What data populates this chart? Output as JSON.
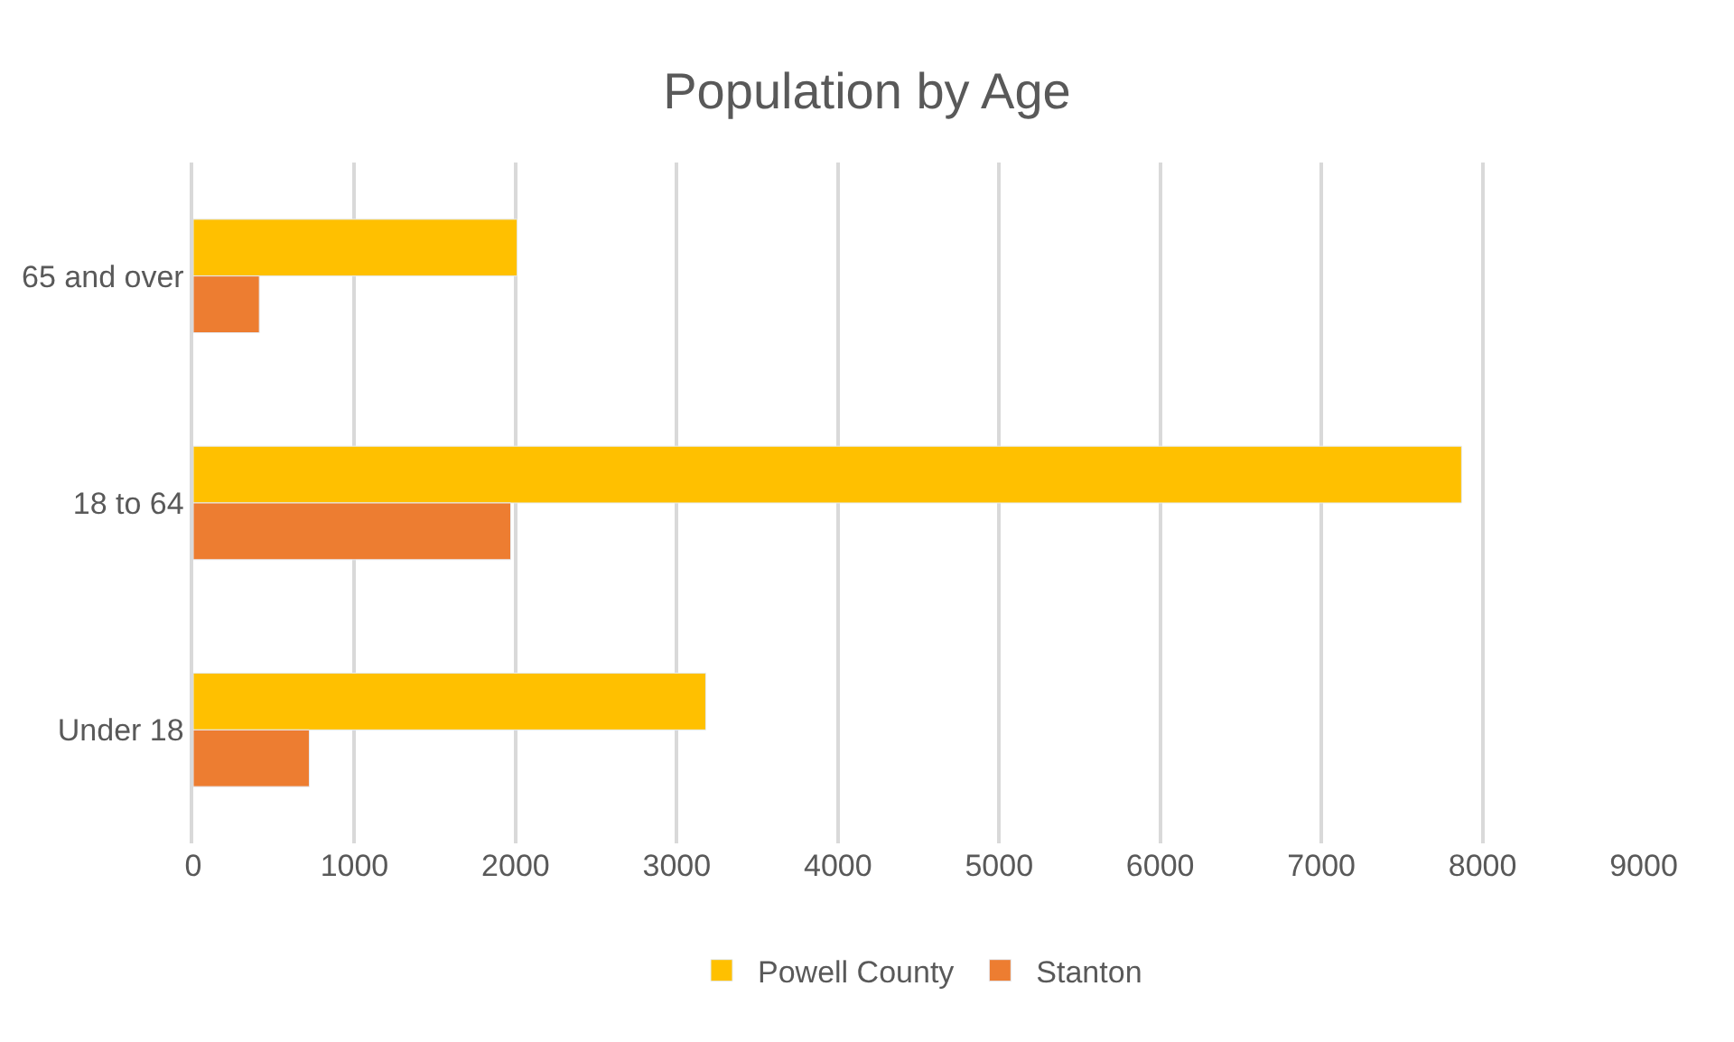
{
  "chart_data": {
    "type": "bar",
    "orientation": "horizontal",
    "title": "Population by Age",
    "categories": [
      "65 and over",
      "18 to 64",
      "Under 18"
    ],
    "series": [
      {
        "name": "Powell County",
        "color": "#ffc000",
        "values": [
          2010,
          7870,
          3180
        ]
      },
      {
        "name": "Stanton",
        "color": "#ed7d31",
        "values": [
          410,
          1970,
          720
        ]
      }
    ],
    "xlim": [
      0,
      9000
    ],
    "xticks": [
      0,
      1000,
      2000,
      3000,
      4000,
      5000,
      6000,
      7000,
      8000,
      9000
    ],
    "grid": "x",
    "legend": "bottom"
  }
}
